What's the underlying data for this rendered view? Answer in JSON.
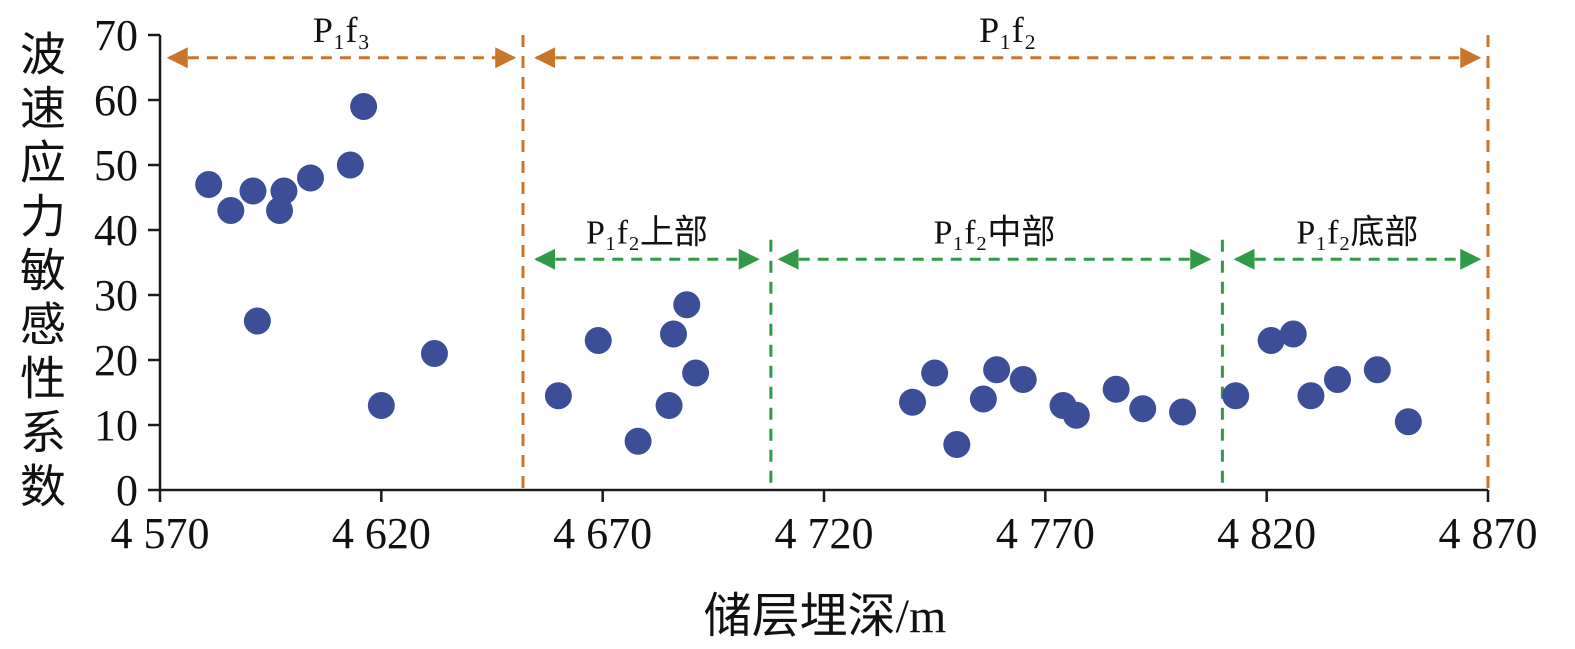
{
  "chart_data": {
    "type": "scatter",
    "title": "",
    "xlabel": "储层埋深/m",
    "ylabel": "波速应力敏感性系数",
    "xlim": [
      4570,
      4870
    ],
    "ylim": [
      0,
      70
    ],
    "grid": false,
    "legend": "none",
    "axis_color": "#1a1a1a",
    "point_color": "#3b4e97",
    "x_ticks": [
      {
        "value": 4570,
        "label": "4 570"
      },
      {
        "value": 4620,
        "label": "4 620"
      },
      {
        "value": 4670,
        "label": "4 670"
      },
      {
        "value": 4720,
        "label": "4 720"
      },
      {
        "value": 4770,
        "label": "4 770"
      },
      {
        "value": 4820,
        "label": "4 820"
      },
      {
        "value": 4870,
        "label": "4 870"
      }
    ],
    "y_ticks": [
      {
        "value": 0,
        "label": "0"
      },
      {
        "value": 10,
        "label": "10"
      },
      {
        "value": 20,
        "label": "20"
      },
      {
        "value": 30,
        "label": "30"
      },
      {
        "value": 40,
        "label": "40"
      },
      {
        "value": 50,
        "label": "50"
      },
      {
        "value": 60,
        "label": "60"
      },
      {
        "value": 70,
        "label": "70"
      }
    ],
    "points": [
      [
        4581,
        47
      ],
      [
        4586,
        43
      ],
      [
        4591,
        46
      ],
      [
        4592,
        26
      ],
      [
        4597,
        43
      ],
      [
        4598,
        46
      ],
      [
        4604,
        48
      ],
      [
        4613,
        50
      ],
      [
        4616,
        59
      ],
      [
        4620,
        13
      ],
      [
        4632,
        21
      ],
      [
        4660,
        14.5
      ],
      [
        4669,
        23
      ],
      [
        4678,
        7.5
      ],
      [
        4685,
        13
      ],
      [
        4686,
        24
      ],
      [
        4689,
        28.5
      ],
      [
        4691,
        18
      ],
      [
        4740,
        13.5
      ],
      [
        4745,
        18
      ],
      [
        4750,
        7
      ],
      [
        4756,
        14
      ],
      [
        4759,
        18.5
      ],
      [
        4765,
        17
      ],
      [
        4774,
        13
      ],
      [
        4777,
        11.5
      ],
      [
        4786,
        15.5
      ],
      [
        4792,
        12.5
      ],
      [
        4801,
        12
      ],
      [
        4813,
        14.5
      ],
      [
        4821,
        23
      ],
      [
        4826,
        24
      ],
      [
        4830,
        14.5
      ],
      [
        4836,
        17
      ],
      [
        4845,
        18.5
      ],
      [
        4852,
        10.5
      ]
    ],
    "formation_regions": [
      {
        "label": "P₁f₃",
        "start": 4572,
        "end": 4650,
        "arrow_y": 66.5,
        "color": "#c8762b"
      },
      {
        "label": "P₁f₂",
        "start": 4655,
        "end": 4868,
        "arrow_y": 66.5,
        "color": "#c8762b"
      }
    ],
    "sub_regions": [
      {
        "label": "P₁f₂上部",
        "start": 4655,
        "end": 4705,
        "arrow_y": 35.5,
        "color": "#2f9a47"
      },
      {
        "label": "P₁f₂中部",
        "start": 4710,
        "end": 4807,
        "arrow_y": 35.5,
        "color": "#2f9a47"
      },
      {
        "label": "P₁f₂底部",
        "start": 4813,
        "end": 4868,
        "arrow_y": 35.5,
        "color": "#2f9a47"
      }
    ],
    "dividers": [
      {
        "x": 4652,
        "color": "#c8762b",
        "y_top": 70,
        "y_bottom": 0
      },
      {
        "x": 4870,
        "color": "#c8762b",
        "y_top": 70,
        "y_bottom": 0
      },
      {
        "x": 4708,
        "color": "#2f9a47",
        "y_top": 38.5,
        "y_bottom": 0
      },
      {
        "x": 4810,
        "color": "#2f9a47",
        "y_top": 38.5,
        "y_bottom": 0
      }
    ]
  }
}
